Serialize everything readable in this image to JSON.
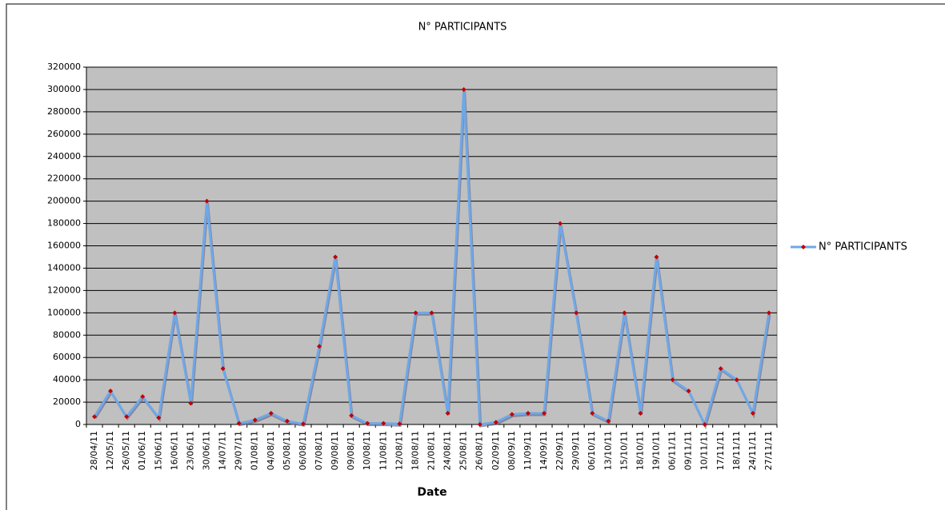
{
  "chart_data": {
    "type": "line",
    "title": "N° PARTICIPANTS",
    "x_label": "Date",
    "categories": [
      "28/04/11",
      "12/05/11",
      "26/05/11",
      "01/06/11",
      "15/06/11",
      "16/06/11",
      "23/06/11",
      "30/06/11",
      "14/07/11",
      "29/07/11",
      "01/08/11",
      "04/08/11",
      "05/08/11",
      "06/08/11",
      "07/08/11",
      "09/08/11",
      "09/08/11",
      "10/08/11",
      "11/08/11",
      "12/08/11",
      "18/08/11",
      "21/08/11",
      "24/08/11",
      "25/08/11",
      "26/08/11",
      "02/09/11",
      "08/09/11",
      "11/09/11",
      "14/09/11",
      "22/09/11",
      "29/09/11",
      "06/10/11",
      "13/10/11",
      "15/10/11",
      "18/10/11",
      "19/10/11",
      "06/11/11",
      "09/11/11",
      "10/11/11",
      "17/11/11",
      "18/11/11",
      "24/11/11",
      "27/11/11"
    ],
    "series": [
      {
        "name": "N° PARTICIPANTS",
        "color": "#6fa8e8",
        "marker_color": "#c00000",
        "values": [
          7000,
          30000,
          7000,
          25000,
          6000,
          100000,
          19000,
          200000,
          50000,
          1000,
          4000,
          10000,
          3000,
          500,
          70000,
          150000,
          8000,
          1000,
          1000,
          500,
          100000,
          100000,
          10000,
          300000,
          0,
          2000,
          9000,
          10000,
          10000,
          180000,
          100000,
          10000,
          3000,
          100000,
          10000,
          150000,
          40000,
          30000,
          0,
          50000,
          40000,
          10000,
          100000
        ]
      }
    ],
    "ylim": [
      0,
      320000
    ],
    "yticks": [
      0,
      20000,
      40000,
      60000,
      80000,
      100000,
      120000,
      140000,
      160000,
      180000,
      200000,
      220000,
      240000,
      260000,
      280000,
      300000,
      320000
    ],
    "grid": true,
    "legend": "right",
    "plot_background": "#c0c0c0"
  }
}
